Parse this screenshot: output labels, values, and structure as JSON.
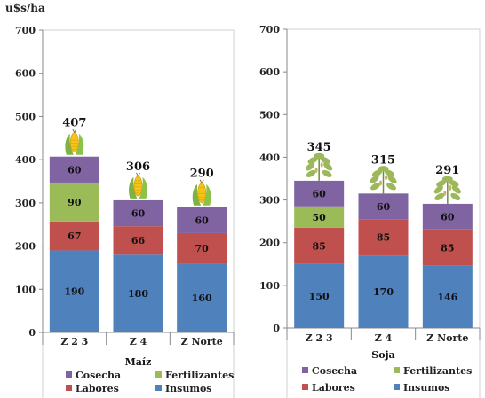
{
  "y_unit": "u$s/ha",
  "colors": {
    "Cosecha": "#8064a2",
    "Fertilizantes": "#9bbb59",
    "Labores": "#c0504d",
    "Insumos": "#4f81bd"
  },
  "legend_order": [
    "Cosecha",
    "Fertilizantes",
    "Labores",
    "Insumos"
  ],
  "chart_data": [
    {
      "type": "bar",
      "stacked": true,
      "xlabel": "Maíz",
      "ylim": [
        0,
        700
      ],
      "yticks": [
        0,
        100,
        200,
        300,
        400,
        500,
        600,
        700
      ],
      "categories": [
        "Z 2 3",
        "Z 4",
        "Z Norte"
      ],
      "totals": [
        407,
        306,
        290
      ],
      "icon": "corn-icon",
      "series": [
        {
          "name": "Insumos",
          "values": [
            190,
            180,
            160
          ]
        },
        {
          "name": "Labores",
          "values": [
            67,
            66,
            70
          ]
        },
        {
          "name": "Fertilizantes",
          "values": [
            90,
            0,
            0
          ]
        },
        {
          "name": "Cosecha",
          "values": [
            60,
            60,
            60
          ]
        }
      ],
      "legend": "bottom"
    },
    {
      "type": "bar",
      "stacked": true,
      "xlabel": "Soja",
      "ylim": [
        0,
        700
      ],
      "yticks": [
        0,
        100,
        200,
        300,
        400,
        500,
        600,
        700
      ],
      "categories": [
        "Z 2 3",
        "Z 4",
        "Z Norte"
      ],
      "totals": [
        345,
        315,
        291
      ],
      "icon": "soy-plant-icon",
      "series": [
        {
          "name": "Insumos",
          "values": [
            150,
            170,
            146
          ]
        },
        {
          "name": "Labores",
          "values": [
            85,
            85,
            85
          ]
        },
        {
          "name": "Fertilizantes",
          "values": [
            50,
            0,
            0
          ]
        },
        {
          "name": "Cosecha",
          "values": [
            60,
            60,
            60
          ]
        }
      ],
      "legend": "bottom"
    }
  ]
}
